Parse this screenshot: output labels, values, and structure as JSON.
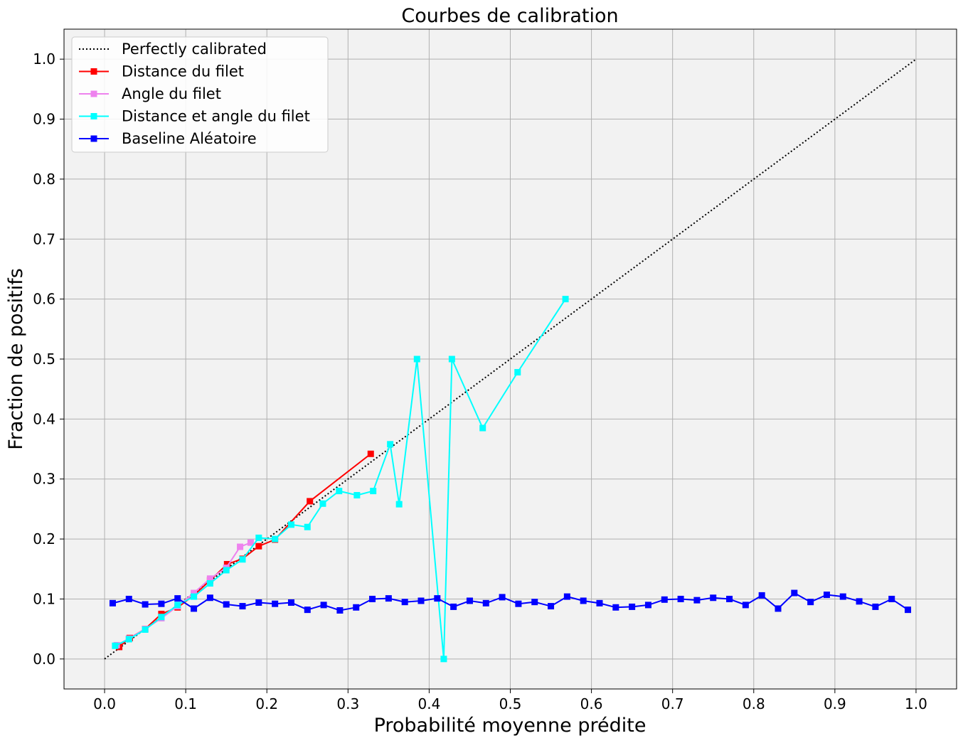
{
  "chart_data": {
    "type": "line",
    "title": "Courbes de calibration",
    "xlabel": "Probabilité moyenne prédite",
    "ylabel": "Fraction de positifs",
    "xlim": [
      -0.05,
      1.05
    ],
    "ylim": [
      -0.05,
      1.05
    ],
    "xticks": [
      0.0,
      0.1,
      0.2,
      0.3,
      0.4,
      0.5,
      0.6,
      0.7,
      0.8,
      0.9,
      1.0
    ],
    "yticks": [
      0.0,
      0.1,
      0.2,
      0.3,
      0.4,
      0.5,
      0.6,
      0.7,
      0.8,
      0.9,
      1.0
    ],
    "xtick_labels": [
      "0.0",
      "0.1",
      "0.2",
      "0.3",
      "0.4",
      "0.5",
      "0.6",
      "0.7",
      "0.8",
      "0.9",
      "1.0"
    ],
    "ytick_labels": [
      "0.0",
      "0.1",
      "0.2",
      "0.3",
      "0.4",
      "0.5",
      "0.6",
      "0.7",
      "0.8",
      "0.9",
      "1.0"
    ],
    "grid": true,
    "legend_position": "top-left",
    "background": "#f2f2f2",
    "series": [
      {
        "name": "Perfectly calibrated",
        "color": "#000000",
        "style": "dotted",
        "marker": "none",
        "x": [
          0.0,
          1.0
        ],
        "y": [
          0.0,
          1.0
        ]
      },
      {
        "name": "Distance du filet",
        "color": "#ff0000",
        "style": "solid",
        "marker": "square",
        "x": [
          0.018,
          0.031,
          0.05,
          0.07,
          0.09,
          0.11,
          0.13,
          0.151,
          0.17,
          0.19,
          0.21,
          0.253,
          0.328
        ],
        "y": [
          0.02,
          0.035,
          0.05,
          0.075,
          0.086,
          0.106,
          0.131,
          0.158,
          0.167,
          0.188,
          0.199,
          0.263,
          0.342
        ]
      },
      {
        "name": "Angle du filet",
        "color": "#ee82ee",
        "style": "solid",
        "marker": "square",
        "x": [
          0.015,
          0.03,
          0.05,
          0.07,
          0.09,
          0.11,
          0.13,
          0.15,
          0.167,
          0.18
        ],
        "y": [
          0.023,
          0.034,
          0.05,
          0.068,
          0.088,
          0.11,
          0.134,
          0.152,
          0.187,
          0.194
        ]
      },
      {
        "name": "Distance et angle du filet",
        "color": "#00ffff",
        "style": "solid",
        "marker": "square",
        "x": [
          0.013,
          0.03,
          0.05,
          0.07,
          0.09,
          0.11,
          0.13,
          0.15,
          0.17,
          0.19,
          0.21,
          0.23,
          0.25,
          0.269,
          0.289,
          0.311,
          0.331,
          0.352,
          0.363,
          0.385,
          0.418,
          0.428,
          0.466,
          0.509,
          0.568
        ],
        "y": [
          0.022,
          0.033,
          0.049,
          0.07,
          0.09,
          0.104,
          0.126,
          0.148,
          0.166,
          0.202,
          0.2,
          0.224,
          0.22,
          0.259,
          0.28,
          0.273,
          0.28,
          0.358,
          0.258,
          0.5,
          0.0,
          0.5,
          0.385,
          0.478,
          0.6
        ]
      },
      {
        "name": "Baseline Aléatoire",
        "color": "#0000ff",
        "style": "solid",
        "marker": "square",
        "x": [
          0.01,
          0.03,
          0.05,
          0.07,
          0.09,
          0.11,
          0.13,
          0.15,
          0.17,
          0.19,
          0.21,
          0.23,
          0.25,
          0.27,
          0.29,
          0.31,
          0.33,
          0.35,
          0.37,
          0.39,
          0.41,
          0.43,
          0.45,
          0.47,
          0.49,
          0.51,
          0.53,
          0.55,
          0.57,
          0.59,
          0.61,
          0.63,
          0.65,
          0.67,
          0.69,
          0.71,
          0.73,
          0.75,
          0.77,
          0.79,
          0.81,
          0.83,
          0.85,
          0.87,
          0.89,
          0.91,
          0.93,
          0.95,
          0.97,
          0.99
        ],
        "y": [
          0.093,
          0.1,
          0.091,
          0.092,
          0.101,
          0.084,
          0.102,
          0.091,
          0.088,
          0.094,
          0.092,
          0.094,
          0.082,
          0.09,
          0.081,
          0.086,
          0.1,
          0.101,
          0.095,
          0.097,
          0.101,
          0.087,
          0.097,
          0.093,
          0.103,
          0.092,
          0.095,
          0.088,
          0.104,
          0.097,
          0.093,
          0.086,
          0.087,
          0.09,
          0.099,
          0.1,
          0.098,
          0.102,
          0.1,
          0.09,
          0.106,
          0.084,
          0.11,
          0.095,
          0.107,
          0.104,
          0.096,
          0.087,
          0.1,
          0.082
        ]
      }
    ]
  }
}
